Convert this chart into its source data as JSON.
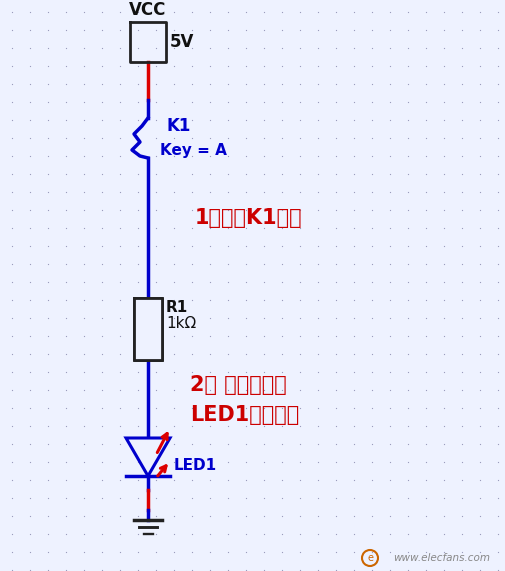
{
  "bg_color": "#eef2ff",
  "dot_color": "#9999bb",
  "wire_red": "#dd0000",
  "wire_blue": "#0000cc",
  "comp_color": "#222222",
  "text_blue": "#0000cc",
  "text_red": "#cc0000",
  "text_black": "#111111",
  "annotation1": "1、开关K1合上",
  "annotation2": "2、 发光二极管",
  "annotation3": "LED1被点亮。",
  "vcc_label": "VCC",
  "vcc_val": "5V",
  "k1_label": "K1",
  "key_label": "Key = A",
  "r1_label": "R1",
  "r1_val": "1kΩ",
  "led_label": "LED1",
  "watermark": "www.elecfans.com",
  "figsize": [
    5.05,
    5.71
  ],
  "dpi": 100
}
